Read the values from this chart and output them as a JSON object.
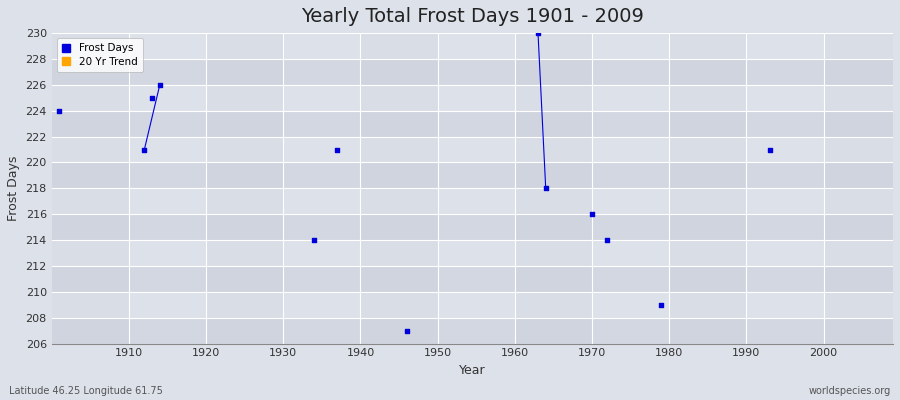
{
  "title": "Yearly Total Frost Days 1901 - 2009",
  "xlabel": "Year",
  "ylabel": "Frost Days",
  "ylim": [
    206,
    230
  ],
  "xlim": [
    1900,
    2009
  ],
  "yticks": [
    206,
    208,
    210,
    212,
    214,
    216,
    218,
    220,
    222,
    224,
    226,
    228,
    230
  ],
  "xticks": [
    1910,
    1920,
    1930,
    1940,
    1950,
    1960,
    1970,
    1980,
    1990,
    2000
  ],
  "bg_color": "#dde1ea",
  "plot_bg_color": "#dde1ea",
  "grid_color": "#ffffff",
  "frost_color": "#0000dd",
  "trend_color": "#ffa500",
  "scatter_points": [
    [
      1901,
      224
    ],
    [
      1912,
      221
    ],
    [
      1913,
      225
    ],
    [
      1914,
      226
    ],
    [
      1937,
      221
    ],
    [
      1934,
      214
    ],
    [
      1946,
      207
    ],
    [
      1963,
      230
    ],
    [
      1964,
      218
    ],
    [
      1970,
      216
    ],
    [
      1972,
      214
    ],
    [
      1979,
      209
    ],
    [
      1993,
      221
    ]
  ],
  "line_segments": [
    [
      [
        1912,
        221
      ],
      [
        1914,
        226
      ]
    ],
    [
      [
        1963,
        230
      ],
      [
        1964,
        218
      ]
    ]
  ],
  "subtitle_left": "Latitude 46.25 Longitude 61.75",
  "subtitle_right": "worldspecies.org",
  "title_fontsize": 14,
  "label_fontsize": 9,
  "tick_fontsize": 8
}
